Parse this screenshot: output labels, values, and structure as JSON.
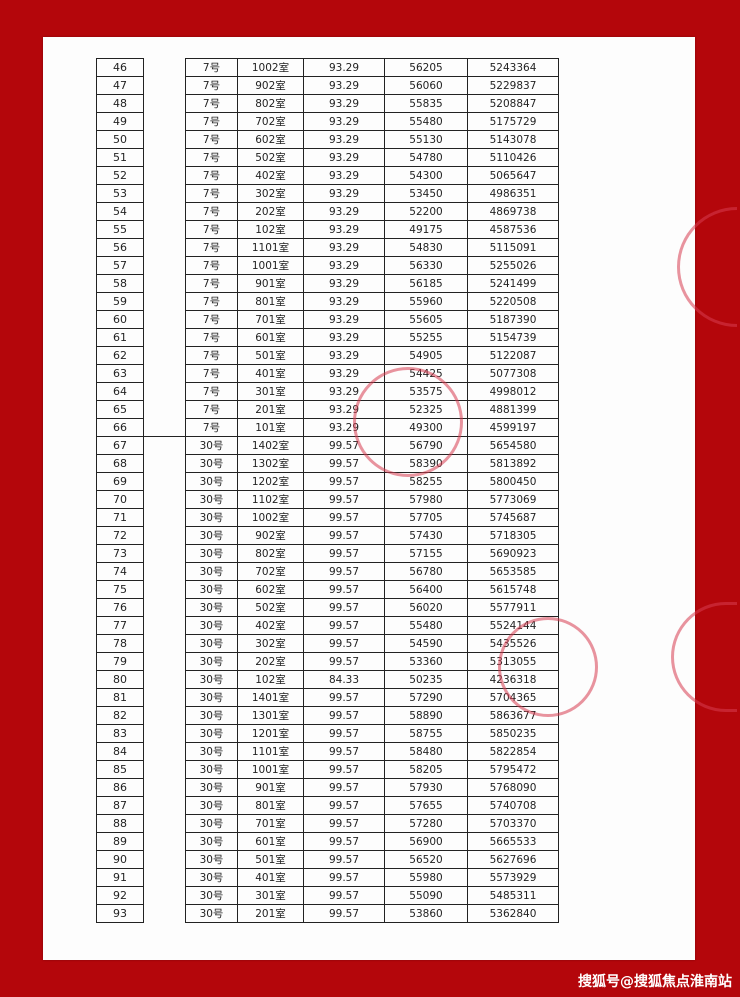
{
  "numbers": [
    "46",
    "47",
    "48",
    "49",
    "50",
    "51",
    "52",
    "53",
    "54",
    "55",
    "56",
    "57",
    "58",
    "59",
    "60",
    "61",
    "62",
    "63",
    "64",
    "65",
    "66",
    "67",
    "68",
    "69",
    "70",
    "71",
    "72",
    "73",
    "74",
    "75",
    "76",
    "77",
    "78",
    "79",
    "80",
    "81",
    "82",
    "83",
    "84",
    "85",
    "86",
    "87",
    "88",
    "89",
    "90",
    "91",
    "92",
    "93"
  ],
  "rows": [
    [
      "7号",
      "1002室",
      "93.29",
      "56205",
      "5243364"
    ],
    [
      "7号",
      "902室",
      "93.29",
      "56060",
      "5229837"
    ],
    [
      "7号",
      "802室",
      "93.29",
      "55835",
      "5208847"
    ],
    [
      "7号",
      "702室",
      "93.29",
      "55480",
      "5175729"
    ],
    [
      "7号",
      "602室",
      "93.29",
      "55130",
      "5143078"
    ],
    [
      "7号",
      "502室",
      "93.29",
      "54780",
      "5110426"
    ],
    [
      "7号",
      "402室",
      "93.29",
      "54300",
      "5065647"
    ],
    [
      "7号",
      "302室",
      "93.29",
      "53450",
      "4986351"
    ],
    [
      "7号",
      "202室",
      "93.29",
      "52200",
      "4869738"
    ],
    [
      "7号",
      "102室",
      "93.29",
      "49175",
      "4587536"
    ],
    [
      "7号",
      "1101室",
      "93.29",
      "54830",
      "5115091"
    ],
    [
      "7号",
      "1001室",
      "93.29",
      "56330",
      "5255026"
    ],
    [
      "7号",
      "901室",
      "93.29",
      "56185",
      "5241499"
    ],
    [
      "7号",
      "801室",
      "93.29",
      "55960",
      "5220508"
    ],
    [
      "7号",
      "701室",
      "93.29",
      "55605",
      "5187390"
    ],
    [
      "7号",
      "601室",
      "93.29",
      "55255",
      "5154739"
    ],
    [
      "7号",
      "501室",
      "93.29",
      "54905",
      "5122087"
    ],
    [
      "7号",
      "401室",
      "93.29",
      "54425",
      "5077308"
    ],
    [
      "7号",
      "301室",
      "93.29",
      "53575",
      "4998012"
    ],
    [
      "7号",
      "201室",
      "93.29",
      "52325",
      "4881399"
    ],
    [
      "7号",
      "101室",
      "93.29",
      "49300",
      "4599197"
    ],
    [
      "30号",
      "1402室",
      "99.57",
      "56790",
      "5654580"
    ],
    [
      "30号",
      "1302室",
      "99.57",
      "58390",
      "5813892"
    ],
    [
      "30号",
      "1202室",
      "99.57",
      "58255",
      "5800450"
    ],
    [
      "30号",
      "1102室",
      "99.57",
      "57980",
      "5773069"
    ],
    [
      "30号",
      "1002室",
      "99.57",
      "57705",
      "5745687"
    ],
    [
      "30号",
      "902室",
      "99.57",
      "57430",
      "5718305"
    ],
    [
      "30号",
      "802室",
      "99.57",
      "57155",
      "5690923"
    ],
    [
      "30号",
      "702室",
      "99.57",
      "56780",
      "5653585"
    ],
    [
      "30号",
      "602室",
      "99.57",
      "56400",
      "5615748"
    ],
    [
      "30号",
      "502室",
      "99.57",
      "56020",
      "5577911"
    ],
    [
      "30号",
      "402室",
      "99.57",
      "55480",
      "5524144"
    ],
    [
      "30号",
      "302室",
      "99.57",
      "54590",
      "5435526"
    ],
    [
      "30号",
      "202室",
      "99.57",
      "53360",
      "5313055"
    ],
    [
      "30号",
      "102室",
      "84.33",
      "50235",
      "4236318"
    ],
    [
      "30号",
      "1401室",
      "99.57",
      "57290",
      "5704365"
    ],
    [
      "30号",
      "1301室",
      "99.57",
      "58890",
      "5863677"
    ],
    [
      "30号",
      "1201室",
      "99.57",
      "58755",
      "5850235"
    ],
    [
      "30号",
      "1101室",
      "99.57",
      "58480",
      "5822854"
    ],
    [
      "30号",
      "1001室",
      "99.57",
      "58205",
      "5795472"
    ],
    [
      "30号",
      "901室",
      "99.57",
      "57930",
      "5768090"
    ],
    [
      "30号",
      "801室",
      "99.57",
      "57655",
      "5740708"
    ],
    [
      "30号",
      "701室",
      "99.57",
      "57280",
      "5703370"
    ],
    [
      "30号",
      "601室",
      "99.57",
      "56900",
      "5665533"
    ],
    [
      "30号",
      "501室",
      "99.57",
      "56520",
      "5627696"
    ],
    [
      "30号",
      "401室",
      "99.57",
      "55980",
      "5573929"
    ],
    [
      "30号",
      "301室",
      "99.57",
      "55090",
      "5485311"
    ],
    [
      "30号",
      "201室",
      "99.57",
      "53860",
      "5362840"
    ]
  ],
  "footer": {
    "watermark": "搜狐号@搜狐焦点淮南站"
  },
  "colors": {
    "background": "#b4060b",
    "stamp": "#d73c50"
  }
}
